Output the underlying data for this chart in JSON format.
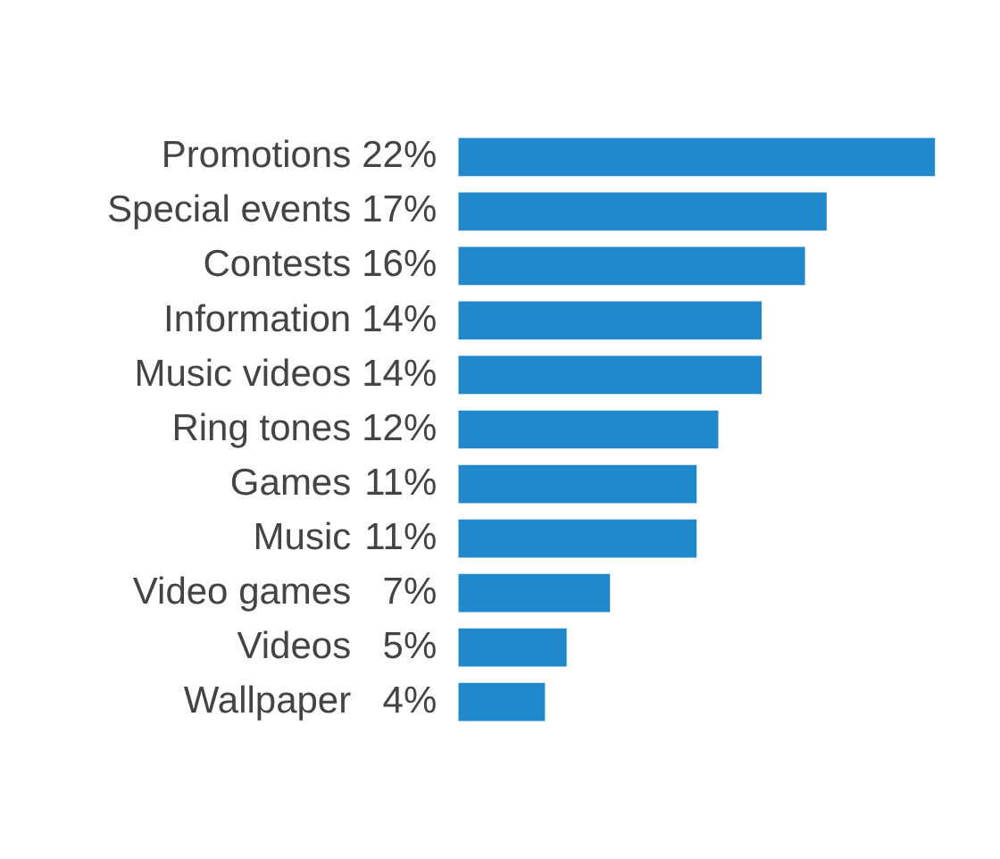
{
  "chart_data": {
    "type": "bar",
    "orientation": "horizontal",
    "categories": [
      "Promotions",
      "Special events",
      "Contests",
      "Information",
      "Music videos",
      "Ring tones",
      "Games",
      "Music",
      "Video games",
      "Videos",
      "Wallpaper"
    ],
    "values": [
      22,
      17,
      16,
      14,
      14,
      12,
      11,
      11,
      7,
      5,
      4
    ],
    "value_labels": [
      "22%",
      "17%",
      "16%",
      "14%",
      "14%",
      "12%",
      "11%",
      "11%",
      " 7%",
      " 5%",
      "4%"
    ],
    "color": "#2188cb",
    "tick_labels": "y",
    "grid": false,
    "legend": false
  }
}
